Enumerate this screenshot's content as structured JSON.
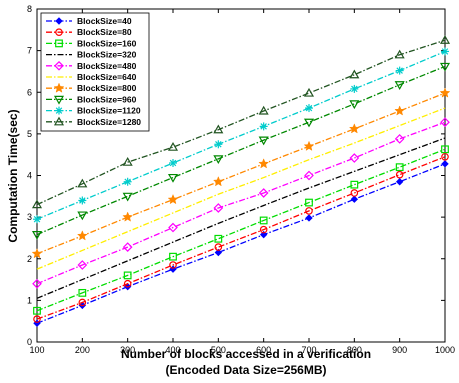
{
  "chart_data": {
    "type": "line",
    "title": "",
    "xlabel": "Number of blocks accessed in a verification",
    "xlabel_line2": "(Encoded Data Size=256MB)",
    "ylabel": "Computation Time(sec)",
    "xlim": [
      100,
      1000
    ],
    "ylim": [
      0,
      8
    ],
    "xticks": [
      100,
      200,
      300,
      400,
      500,
      600,
      700,
      800,
      900,
      1000
    ],
    "yticks": [
      0,
      1,
      2,
      3,
      4,
      5,
      6,
      7,
      8
    ],
    "grid": false,
    "legend_position": "top-left",
    "x": [
      100,
      200,
      300,
      400,
      500,
      600,
      700,
      800,
      900,
      1000
    ],
    "series": [
      {
        "name": "BlockSize=40",
        "color": "#0000ff",
        "marker": "diamond-small",
        "dash": "6,2,1.5,2",
        "values": [
          0.45,
          0.88,
          1.33,
          1.75,
          2.15,
          2.58,
          2.98,
          3.43,
          3.85,
          4.28
        ]
      },
      {
        "name": "BlockSize=80",
        "color": "#ff0000",
        "marker": "circle",
        "dash": "6,2,1.5,2",
        "values": [
          0.55,
          0.95,
          1.4,
          1.85,
          2.28,
          2.7,
          3.15,
          3.58,
          4.02,
          4.45
        ]
      },
      {
        "name": "BlockSize=160",
        "color": "#00dd00",
        "marker": "square",
        "dash": "6,2,1.5,2",
        "values": [
          0.75,
          1.18,
          1.6,
          2.05,
          2.48,
          2.92,
          3.35,
          3.78,
          4.2,
          4.63
        ]
      },
      {
        "name": "BlockSize=320",
        "color": "#000000",
        "marker": "none",
        "dash": "6,2,1.5,2",
        "values": [
          1.05,
          1.5,
          1.95,
          2.4,
          2.85,
          3.28,
          3.7,
          4.1,
          4.5,
          4.9
        ]
      },
      {
        "name": "BlockSize=480",
        "color": "#ff00ff",
        "marker": "diamond",
        "dash": "6,2,1.5,2",
        "values": [
          1.4,
          1.85,
          2.28,
          2.75,
          3.22,
          3.58,
          4.0,
          4.42,
          4.88,
          5.28
        ]
      },
      {
        "name": "BlockSize=640",
        "color": "#ffee00",
        "marker": "none",
        "dash": "6,2,1.5,2",
        "values": [
          1.75,
          2.2,
          2.65,
          3.1,
          3.55,
          3.95,
          4.38,
          4.78,
          5.2,
          5.62
        ]
      },
      {
        "name": "BlockSize=800",
        "color": "#ff8800",
        "marker": "star",
        "dash": "6,2,1.5,2",
        "values": [
          2.12,
          2.55,
          3.0,
          3.42,
          3.85,
          4.28,
          4.7,
          5.12,
          5.55,
          5.98
        ]
      },
      {
        "name": "BlockSize=960",
        "color": "#008800",
        "marker": "triangle-down",
        "dash": "6,2,1.5,2",
        "values": [
          2.58,
          3.05,
          3.5,
          3.95,
          4.4,
          4.85,
          5.28,
          5.72,
          6.18,
          6.62
        ]
      },
      {
        "name": "BlockSize=1120",
        "color": "#00cccc",
        "marker": "asterisk",
        "dash": "6,2,1.5,2",
        "values": [
          2.95,
          3.4,
          3.85,
          4.3,
          4.75,
          5.18,
          5.62,
          6.08,
          6.52,
          6.98
        ]
      },
      {
        "name": "BlockSize=1280",
        "color": "#225522",
        "marker": "triangle-up",
        "dash": "6,2,1.5,2",
        "values": [
          3.3,
          3.8,
          4.32,
          4.68,
          5.1,
          5.55,
          5.98,
          6.42,
          6.9,
          7.25
        ]
      }
    ]
  }
}
